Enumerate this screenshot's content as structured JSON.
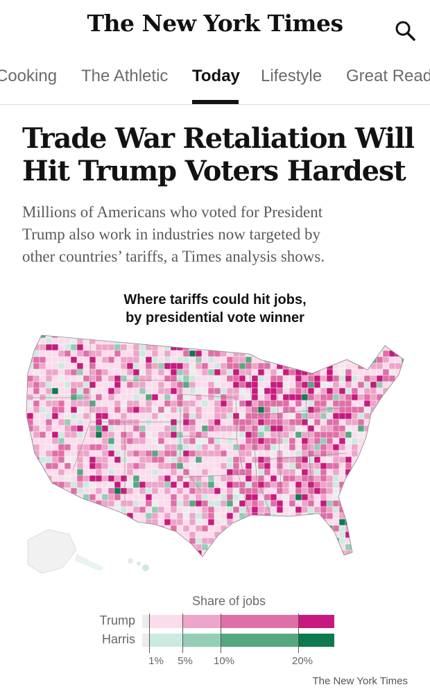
{
  "header": {
    "logo": "The New York Times",
    "search_icon": "search-icon"
  },
  "nav": {
    "tabs": [
      {
        "label": "Cooking",
        "active": false
      },
      {
        "label": "The Athletic",
        "active": false
      },
      {
        "label": "Today",
        "active": true
      },
      {
        "label": "Lifestyle",
        "active": false
      },
      {
        "label": "Great Read",
        "active": false
      }
    ]
  },
  "article": {
    "headline_line1": "Trade War Retaliation Will",
    "headline_line2": "Hit Trump Voters Hardest",
    "summary_line1": "Millions of Americans who voted for President",
    "summary_line2": "Trump also work in industries now targeted by",
    "summary_line3": "other countries’ tariffs, a Times analysis shows."
  },
  "map": {
    "title_line1": "Where tariffs could hit jobs,",
    "title_line2": "by presidential vote winner",
    "legend": {
      "title": "Share of jobs",
      "rows": [
        {
          "label": "Trump",
          "colors": [
            "#ececec",
            "#fbdcec",
            "#eda5c9",
            "#df6fa7",
            "#c8197e"
          ]
        },
        {
          "label": "Harris",
          "colors": [
            "#ececec",
            "#cdeae0",
            "#95cdb6",
            "#55a981",
            "#0c7a4e"
          ]
        }
      ],
      "ticks": [
        "1%",
        "5%",
        "10%",
        "20%"
      ]
    },
    "source": "The New York Times"
  },
  "colors": {
    "trump_scale": [
      "#fbdcec",
      "#eda5c9",
      "#df6fa7",
      "#c8197e"
    ],
    "harris_scale": [
      "#cdeae0",
      "#95cdb6",
      "#55a981",
      "#0c7a4e"
    ],
    "no_data": "#ececec"
  }
}
